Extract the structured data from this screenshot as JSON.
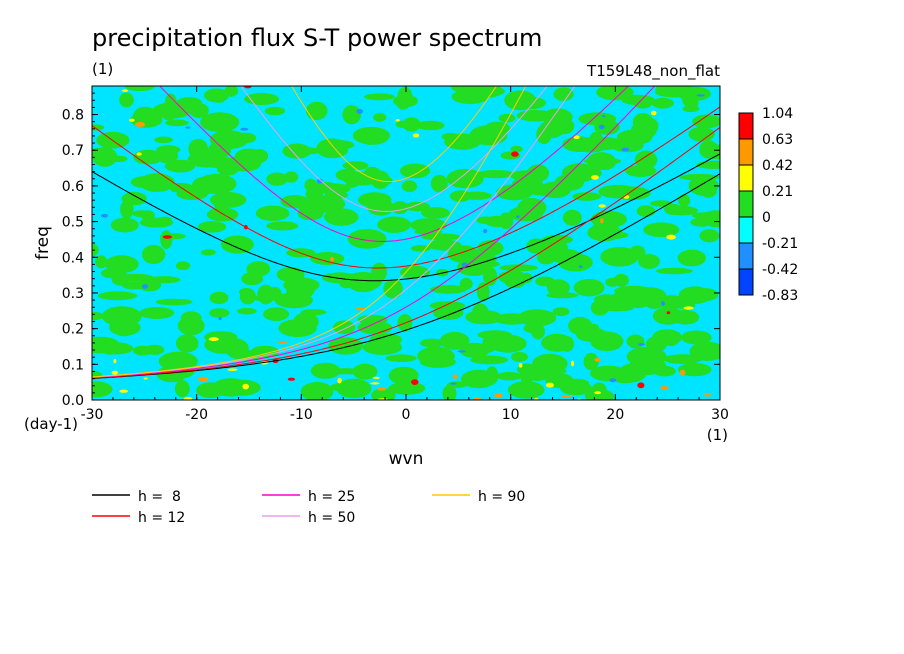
{
  "chart_data": {
    "type": "heatmap",
    "title": "precipitation flux S-T power spectrum",
    "subtitle": "(1)",
    "right_label": "T159L48_non_flat",
    "xlabel": "wvn",
    "xunit": "(1)",
    "ylabel": "freq",
    "yunit": "(day-1)",
    "xlim": [
      -30,
      30
    ],
    "ylim": [
      0,
      0.88
    ],
    "xticks": [
      -30,
      -20,
      -10,
      0,
      10,
      20,
      30
    ],
    "xtick_labels": [
      "-30",
      "-20",
      "-10",
      "0",
      "10",
      "20",
      "30"
    ],
    "yticks": [
      0,
      0.1,
      0.2,
      0.3,
      0.4,
      0.5,
      0.6,
      0.7,
      0.8
    ],
    "ytick_labels": [
      "0.0",
      "0.1",
      "0.2",
      "0.3",
      "0.4",
      "0.5",
      "0.6",
      "0.7",
      "0.8"
    ],
    "colorbar": {
      "levels": [
        "1.04",
        "0.63",
        "0.42",
        "0.21",
        "0",
        "-0.21",
        "-0.42",
        "-0.83"
      ],
      "colors": [
        "#ff0000",
        "#ff9900",
        "#ffff00",
        "#22dd22",
        "#00ffff",
        "#1e90ff",
        "#0044ff"
      ]
    },
    "field_colors": {
      "cyan": "#00e5ff",
      "green": "#22dd22",
      "yellow": "#ffff00",
      "orange": "#ff9900",
      "red": "#ff0000",
      "blue": "#1e90ff"
    },
    "dispersion_curves": [
      {
        "label": "h =  8",
        "h": 8,
        "color": "#000000"
      },
      {
        "label": "h = 12",
        "h": 12,
        "color": "#ff0000"
      },
      {
        "label": "h = 25",
        "h": 25,
        "color": "#ff00cc"
      },
      {
        "label": "h = 50",
        "h": 50,
        "color": "#e8a0e8"
      },
      {
        "label": "h = 90",
        "h": 90,
        "color": "#ffcc00"
      }
    ]
  }
}
